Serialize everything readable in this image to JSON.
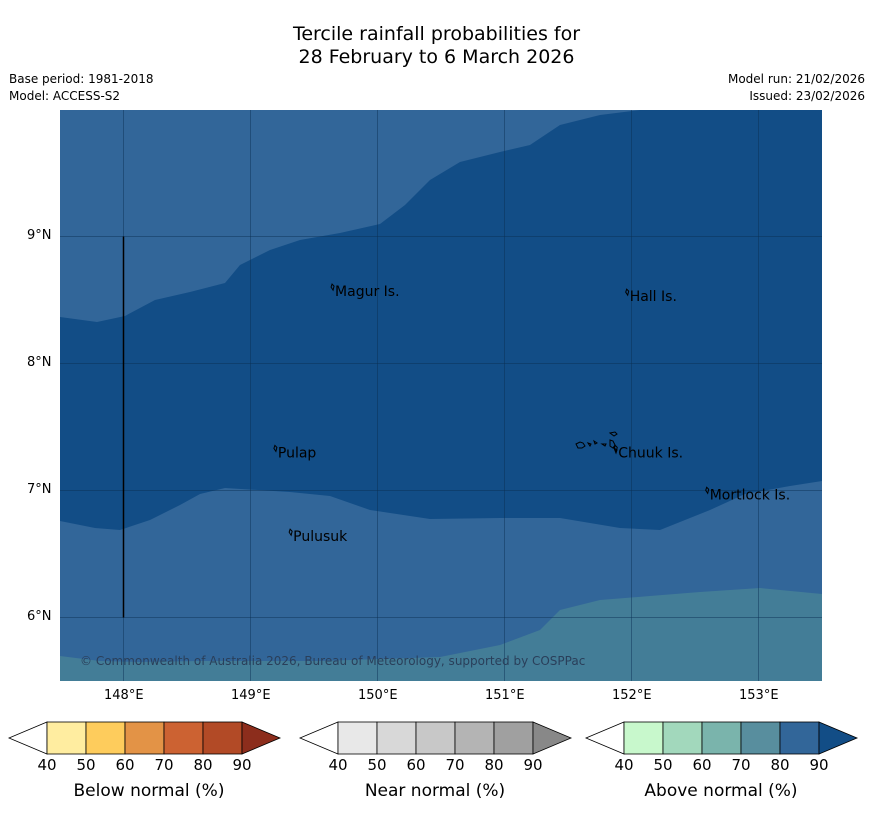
{
  "title": {
    "line1": "Tercile rainfall probabilities for",
    "line2": "28 February to 6 March 2026"
  },
  "info": {
    "base_period": "Base period: 1981-2018",
    "model": "Model: ACCESS-S2",
    "model_run": "Model run: 21/02/2026",
    "issued": "Issued: 23/02/2026"
  },
  "map": {
    "lon_range": [
      147.5,
      153.5
    ],
    "lat_range": [
      5.5,
      10.0
    ],
    "lon_ticks": [
      "148°E",
      "149°E",
      "150°E",
      "151°E",
      "152°E",
      "153°E"
    ],
    "lat_ticks": [
      "9°N",
      "8°N",
      "7°N",
      "6°N"
    ],
    "copyright": "© Commonwealth of Australia 2026, Bureau of Meteorology, supported by COSPPac",
    "places": [
      {
        "name": "Magur Is.",
        "lon": 149.65,
        "lat": 8.57
      },
      {
        "name": "Hall Is.",
        "lon": 151.97,
        "lat": 8.53
      },
      {
        "name": "Pulap",
        "lon": 149.2,
        "lat": 7.3
      },
      {
        "name": "Chuuk Is.",
        "lon": 151.88,
        "lat": 7.3
      },
      {
        "name": "Mortlock Is.",
        "lon": 152.6,
        "lat": 6.97
      },
      {
        "name": "Pulusuk",
        "lon": 149.32,
        "lat": 6.64
      }
    ],
    "boundary_line": {
      "lon": 148.0,
      "lat_from": 6.0,
      "lat_to": 9.0
    },
    "colors": {
      "above_80": "#326699",
      "above_90": "#124d86",
      "above_70": "#437d97"
    }
  },
  "colorbars": [
    {
      "label": "Below normal (%)",
      "ticks": [
        "40",
        "50",
        "60",
        "70",
        "80",
        "90"
      ],
      "colors": [
        "#ffffff",
        "#ffeda0",
        "#fecc5c",
        "#e39346",
        "#cc6232",
        "#b24a26",
        "#8c2d1c"
      ]
    },
    {
      "label": "Near normal (%)",
      "ticks": [
        "40",
        "50",
        "60",
        "70",
        "80",
        "90"
      ],
      "colors": [
        "#ffffff",
        "#e8e8e8",
        "#d8d8d8",
        "#c8c8c8",
        "#b4b4b4",
        "#a0a0a0",
        "#888888"
      ]
    },
    {
      "label": "Above normal (%)",
      "ticks": [
        "40",
        "50",
        "60",
        "70",
        "80",
        "90"
      ],
      "colors": [
        "#ffffff",
        "#c8f8cc",
        "#a2d8bc",
        "#7ab4ac",
        "#588e9e",
        "#326699",
        "#124d86"
      ]
    }
  ]
}
